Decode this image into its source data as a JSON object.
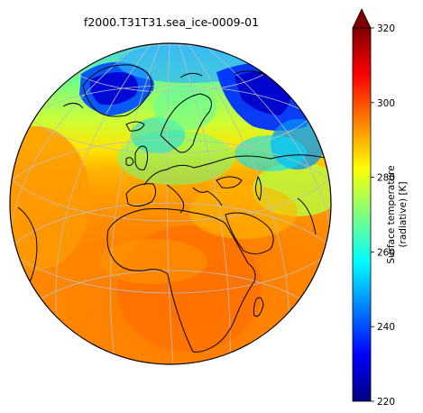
{
  "title": "f2000.T31T31.sea_ice-0009-01",
  "colorbar": {
    "label_line1": "Surface temperature",
    "label_line2": "(radiative) [K]",
    "min": 220,
    "max": 320,
    "ticks": [
      "220",
      "240",
      "260",
      "280",
      "300",
      "320"
    ],
    "extend": "max",
    "colormap": [
      "#00007f",
      "#0000ff",
      "#007fff",
      "#00ffff",
      "#7fff7f",
      "#ffff00",
      "#ff7f00",
      "#ff0000",
      "#7f0000"
    ]
  },
  "map": {
    "projection": "orthographic",
    "variable_range_k": [
      220,
      320
    ]
  }
}
